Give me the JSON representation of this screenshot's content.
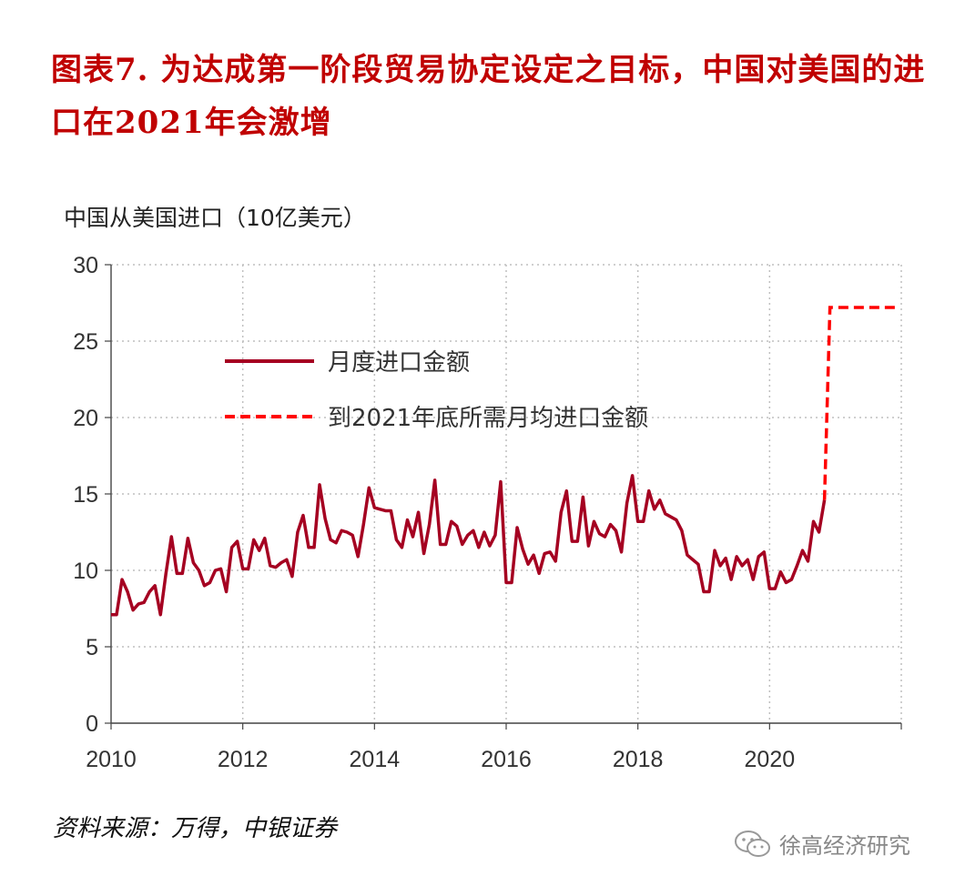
{
  "title": "图表7. 为达成第一阶段贸易协定设定之目标，中国对美国的进口在2021年会激增",
  "unit_label": "中国从美国进口（10亿美元）",
  "source": "资料来源：万得，中银证券",
  "watermark": "徐高经济研究",
  "colors": {
    "title": "#c00000",
    "monthly": "#a50021",
    "target": "#ff0000",
    "grid": "#bfbfbf"
  },
  "chart_data": {
    "type": "line",
    "title": "图表7. 为达成第一阶段贸易协定设定之目标，中国对美国的进口在2021年会激增",
    "ylabel": "中国从美国进口（10亿美元）",
    "xlabel": "",
    "ylim": [
      0,
      30
    ],
    "xlim": [
      2010,
      2022
    ],
    "x_ticks": [
      "2010",
      "2012",
      "2014",
      "2016",
      "2018",
      "2020"
    ],
    "y_ticks": [
      "0",
      "5",
      "10",
      "15",
      "20",
      "25",
      "30"
    ],
    "grid": "dotted",
    "legend_position": "upper-left inside plot",
    "series": [
      {
        "name": "月度进口金额",
        "style": "solid",
        "color": "#a50021",
        "x_start": "2010-01",
        "x_step": "month",
        "values": [
          7.1,
          7.1,
          9.4,
          8.6,
          7.4,
          7.8,
          7.9,
          8.6,
          9.0,
          7.1,
          9.8,
          12.2,
          9.8,
          9.8,
          12.1,
          10.5,
          10.0,
          9.0,
          9.2,
          10.0,
          10.1,
          8.6,
          11.5,
          11.9,
          10.1,
          10.1,
          12.0,
          11.3,
          12.1,
          10.3,
          10.2,
          10.5,
          10.7,
          9.6,
          12.5,
          13.6,
          11.5,
          11.5,
          15.6,
          13.4,
          12.0,
          11.8,
          12.6,
          12.5,
          12.3,
          10.9,
          13.0,
          15.4,
          14.1,
          14.0,
          13.9,
          13.9,
          12.0,
          11.5,
          13.3,
          12.2,
          13.8,
          11.1,
          13.0,
          15.9,
          11.7,
          11.7,
          13.2,
          12.9,
          11.7,
          12.3,
          12.6,
          11.5,
          12.5,
          11.6,
          12.3,
          15.8,
          9.2,
          9.2,
          12.8,
          11.4,
          10.4,
          11.0,
          9.8,
          11.1,
          11.2,
          10.6,
          13.8,
          15.2,
          11.9,
          11.9,
          14.8,
          11.6,
          13.2,
          12.4,
          12.2,
          13.0,
          12.6,
          11.2,
          14.4,
          16.2,
          13.2,
          13.2,
          15.2,
          14.0,
          14.6,
          13.7,
          13.5,
          13.3,
          12.6,
          11.0,
          10.7,
          10.4,
          8.6,
          8.6,
          11.3,
          10.3,
          10.8,
          9.4,
          10.9,
          10.3,
          10.7,
          9.4,
          10.9,
          11.2,
          8.8,
          8.8,
          9.9,
          9.2,
          9.4,
          10.3,
          11.3,
          10.6,
          13.2,
          12.5,
          14.6
        ]
      },
      {
        "name": "到2021年底所需月均进口金额",
        "style": "dashed",
        "color": "#ff0000",
        "x": [
          "2020-11",
          "2020-12",
          "2021-12"
        ],
        "values": [
          14.6,
          27.2,
          27.2
        ]
      }
    ]
  }
}
